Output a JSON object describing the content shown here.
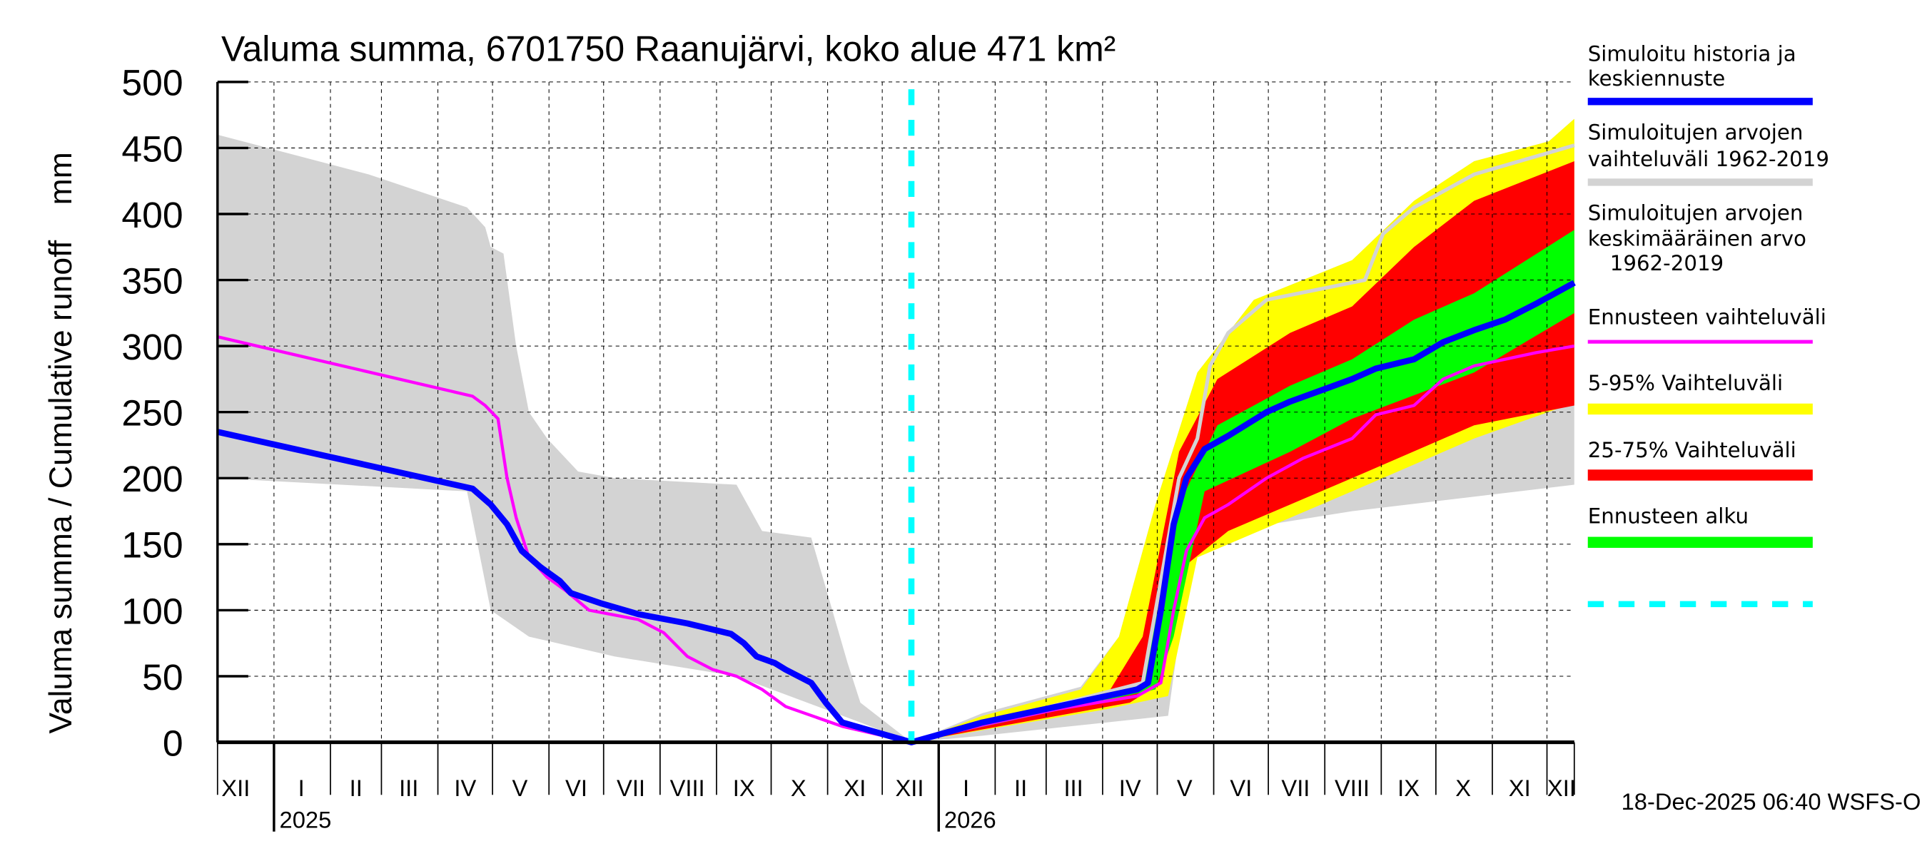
{
  "chart_data": {
    "type": "area",
    "title": "Valuma summa, 6701750 Raanujärvi, koko alue 471 km²",
    "ylabel": "Valuma summa / Cumulative runoff    mm",
    "xunit": "days since 2024-12-01",
    "xlim": [
      0,
      745
    ],
    "ylim": [
      0,
      500
    ],
    "yticks": [
      0,
      50,
      100,
      150,
      200,
      250,
      300,
      350,
      400,
      450,
      500
    ],
    "grid": true,
    "legend_position": "right",
    "month_boundaries": [
      31,
      62,
      90,
      121,
      151,
      182,
      212,
      243,
      274,
      304,
      335,
      365,
      396,
      427,
      455,
      486,
      516,
      547,
      577,
      608,
      639,
      669,
      700,
      730
    ],
    "year_boundaries": [
      31,
      396
    ],
    "month_labels": [
      {
        "d": 10,
        "t": "XII"
      },
      {
        "d": 46,
        "t": "I"
      },
      {
        "d": 76,
        "t": "II"
      },
      {
        "d": 105,
        "t": "III"
      },
      {
        "d": 136,
        "t": "IV"
      },
      {
        "d": 166,
        "t": "V"
      },
      {
        "d": 197,
        "t": "VI"
      },
      {
        "d": 227,
        "t": "VII"
      },
      {
        "d": 258,
        "t": "VIII"
      },
      {
        "d": 289,
        "t": "IX"
      },
      {
        "d": 319,
        "t": "X"
      },
      {
        "d": 350,
        "t": "XI"
      },
      {
        "d": 380,
        "t": "XII"
      },
      {
        "d": 411,
        "t": "I"
      },
      {
        "d": 441,
        "t": "II"
      },
      {
        "d": 470,
        "t": "III"
      },
      {
        "d": 501,
        "t": "IV"
      },
      {
        "d": 531,
        "t": "V"
      },
      {
        "d": 562,
        "t": "VI"
      },
      {
        "d": 592,
        "t": "VII"
      },
      {
        "d": 623,
        "t": "VIII"
      },
      {
        "d": 654,
        "t": "IX"
      },
      {
        "d": 684,
        "t": "X"
      },
      {
        "d": 715,
        "t": "XI"
      },
      {
        "d": 738,
        "t": "XII"
      }
    ],
    "year_labels": [
      {
        "d": 34,
        "t": "2025"
      },
      {
        "d": 399,
        "t": "2026"
      }
    ],
    "forecast_start": 381,
    "timestamp": "18-Dec-2025 06:40 WSFS-O",
    "bands": [
      {
        "name": "Simuloitujen arvojen vaihteluväli 1962-2019",
        "color": "#d3d3d3",
        "upper": [
          [
            0,
            460
          ],
          [
            83,
            430
          ],
          [
            137,
            405
          ],
          [
            147,
            390
          ],
          [
            150,
            375
          ],
          [
            157,
            370
          ],
          [
            164,
            300
          ],
          [
            171,
            250
          ],
          [
            181,
            230
          ],
          [
            198,
            205
          ],
          [
            218,
            200
          ],
          [
            285,
            195
          ],
          [
            299,
            160
          ],
          [
            326,
            155
          ],
          [
            346,
            60
          ],
          [
            353,
            30
          ],
          [
            381,
            0
          ],
          [
            420,
            22
          ],
          [
            474,
            42
          ],
          [
            495,
            80
          ],
          [
            515,
            180
          ],
          [
            538,
            280
          ],
          [
            569,
            335
          ],
          [
            623,
            365
          ],
          [
            657,
            410
          ],
          [
            690,
            440
          ],
          [
            731,
            455
          ],
          [
            745,
            472
          ]
        ],
        "lower": [
          [
            0,
            200
          ],
          [
            137,
            190
          ],
          [
            150,
            100
          ],
          [
            171,
            80
          ],
          [
            218,
            65
          ],
          [
            285,
            50
          ],
          [
            353,
            15
          ],
          [
            381,
            0
          ],
          [
            420,
            5
          ],
          [
            522,
            20
          ],
          [
            535,
            150
          ],
          [
            555,
            160
          ],
          [
            623,
            175
          ],
          [
            745,
            195
          ]
        ]
      },
      {
        "name": "Ennusteen vaihteluväli",
        "color": "#ffff00",
        "upper": [
          [
            381,
            0
          ],
          [
            420,
            20
          ],
          [
            474,
            40
          ],
          [
            495,
            80
          ],
          [
            515,
            180
          ],
          [
            538,
            280
          ],
          [
            569,
            335
          ],
          [
            623,
            365
          ],
          [
            657,
            410
          ],
          [
            690,
            440
          ],
          [
            731,
            455
          ],
          [
            745,
            472
          ]
        ],
        "lower": [
          [
            381,
            0
          ],
          [
            488,
            25
          ],
          [
            522,
            35
          ],
          [
            538,
            140
          ],
          [
            589,
            170
          ],
          [
            623,
            190
          ],
          [
            690,
            230
          ],
          [
            745,
            257
          ]
        ]
      },
      {
        "name": "5-95% Vaihteluväli",
        "color": "#ff0000",
        "upper": [
          [
            381,
            0
          ],
          [
            488,
            35
          ],
          [
            508,
            80
          ],
          [
            528,
            220
          ],
          [
            549,
            275
          ],
          [
            589,
            310
          ],
          [
            623,
            330
          ],
          [
            657,
            375
          ],
          [
            690,
            410
          ],
          [
            745,
            440
          ]
        ],
        "lower": [
          [
            381,
            0
          ],
          [
            501,
            30
          ],
          [
            518,
            45
          ],
          [
            528,
            130
          ],
          [
            555,
            160
          ],
          [
            623,
            200
          ],
          [
            690,
            240
          ],
          [
            745,
            255
          ]
        ]
      },
      {
        "name": "25-75% Vaihteluväli",
        "color": "#00ff00",
        "upper": [
          [
            381,
            0
          ],
          [
            508,
            45
          ],
          [
            528,
            180
          ],
          [
            549,
            240
          ],
          [
            589,
            270
          ],
          [
            623,
            290
          ],
          [
            657,
            320
          ],
          [
            690,
            340
          ],
          [
            745,
            388
          ]
        ],
        "lower": [
          [
            381,
            0
          ],
          [
            515,
            40
          ],
          [
            525,
            80
          ],
          [
            542,
            190
          ],
          [
            589,
            220
          ],
          [
            623,
            245
          ],
          [
            690,
            280
          ],
          [
            745,
            325
          ]
        ]
      }
    ],
    "series": [
      {
        "name": "Simuloitujen arvojen vaihteluväli 1962-2019 (max)",
        "color": "#d3d3d3",
        "width": 3,
        "points": [
          [
            381,
            0
          ],
          [
            508,
            45
          ],
          [
            528,
            200
          ],
          [
            538,
            230
          ],
          [
            545,
            285
          ],
          [
            555,
            310
          ],
          [
            576,
            335
          ],
          [
            630,
            350
          ],
          [
            640,
            385
          ],
          [
            657,
            405
          ],
          [
            690,
            430
          ],
          [
            745,
            452
          ]
        ]
      },
      {
        "name": "Simuloitujen arvojen keskimääräinen arvo 1962-2019",
        "color": "#ff00ff",
        "width": 2.5,
        "points": [
          [
            0,
            307
          ],
          [
            140,
            262
          ],
          [
            147,
            255
          ],
          [
            154,
            245
          ],
          [
            159,
            200
          ],
          [
            164,
            170
          ],
          [
            171,
            140
          ],
          [
            181,
            125
          ],
          [
            191,
            115
          ],
          [
            204,
            100
          ],
          [
            231,
            93
          ],
          [
            245,
            83
          ],
          [
            258,
            65
          ],
          [
            272,
            55
          ],
          [
            285,
            50
          ],
          [
            299,
            40
          ],
          [
            312,
            27
          ],
          [
            343,
            12
          ],
          [
            381,
            0
          ],
          [
            420,
            13
          ],
          [
            461,
            25
          ],
          [
            505,
            35
          ],
          [
            518,
            45
          ],
          [
            525,
            100
          ],
          [
            532,
            145
          ],
          [
            542,
            170
          ],
          [
            555,
            180
          ],
          [
            576,
            200
          ],
          [
            596,
            215
          ],
          [
            623,
            230
          ],
          [
            636,
            248
          ],
          [
            657,
            255
          ],
          [
            673,
            275
          ],
          [
            690,
            285
          ],
          [
            724,
            295
          ],
          [
            745,
            300
          ]
        ]
      },
      {
        "name": "Simuloitu historia ja keskiennuste",
        "color": "#0000ff",
        "width": 5,
        "points": [
          [
            0,
            235
          ],
          [
            140,
            192
          ],
          [
            150,
            180
          ],
          [
            159,
            165
          ],
          [
            167,
            145
          ],
          [
            177,
            133
          ],
          [
            188,
            122
          ],
          [
            194,
            113
          ],
          [
            211,
            105
          ],
          [
            231,
            97
          ],
          [
            258,
            90
          ],
          [
            282,
            82
          ],
          [
            289,
            75
          ],
          [
            296,
            65
          ],
          [
            306,
            60
          ],
          [
            312,
            55
          ],
          [
            326,
            45
          ],
          [
            334,
            30
          ],
          [
            343,
            15
          ],
          [
            381,
            0
          ],
          [
            420,
            15
          ],
          [
            461,
            27
          ],
          [
            505,
            40
          ],
          [
            511,
            45
          ],
          [
            518,
            100
          ],
          [
            525,
            165
          ],
          [
            532,
            200
          ],
          [
            542,
            222
          ],
          [
            555,
            232
          ],
          [
            576,
            250
          ],
          [
            589,
            258
          ],
          [
            609,
            268
          ],
          [
            623,
            275
          ],
          [
            636,
            283
          ],
          [
            657,
            290
          ],
          [
            673,
            303
          ],
          [
            690,
            312
          ],
          [
            707,
            320
          ],
          [
            724,
            332
          ],
          [
            745,
            348
          ]
        ]
      }
    ],
    "legend": [
      {
        "label": "Simuloitu historia ja keskiennuste",
        "color": "#0000ff",
        "style": "solid"
      },
      {
        "label": "Simuloitujen arvojen vaihteluväli 1962-2019",
        "color": "#d3d3d3",
        "style": "solid"
      },
      {
        "label": "Simuloitujen arvojen keskimääräinen arvo 1962-2019",
        "color": "#ff00ff",
        "style": "solid"
      },
      {
        "label": "Ennusteen vaihteluväli",
        "color": "#ffff00",
        "style": "solid"
      },
      {
        "label": "5-95% Vaihteluväli",
        "color": "#ff0000",
        "style": "solid"
      },
      {
        "label": "25-75% Vaihteluväli",
        "color": "#00ff00",
        "style": "solid"
      },
      {
        "label": "Ennusteen alku",
        "color": "#00ffff",
        "style": "dashed"
      }
    ]
  },
  "legend_text": {
    "l1a": "Simuloitu historia ja",
    "l1b": "keskiennuste",
    "l2a": "Simuloitujen arvojen",
    "l2b": "vaihteluväli 1962-2019",
    "l3a": "Simuloitujen arvojen",
    "l3b": "keskimääräinen arvo",
    "l3c": "1962-2019",
    "l4": "Ennusteen vaihteluväli",
    "l5": "5-95% Vaihteluväli",
    "l6": "25-75% Vaihteluväli",
    "l7": "Ennusteen alku"
  }
}
